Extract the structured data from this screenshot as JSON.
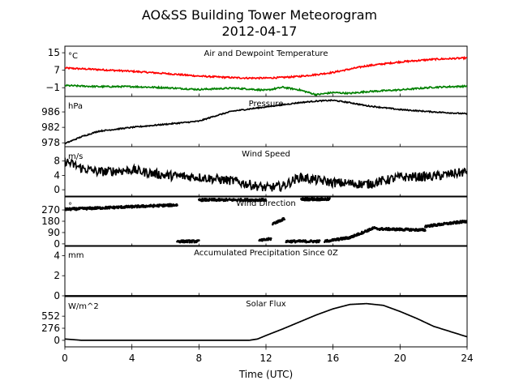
{
  "title": "AO&SS Building Tower Meteorogram",
  "subtitle": "2012-04-17",
  "chart_data": [
    {
      "type": "line",
      "title": "Air and Dewpoint Temperature",
      "unit": "°C",
      "yticks": [
        "15",
        "7",
        "−1"
      ],
      "ylim": [
        -5,
        18
      ],
      "x": [
        0,
        2,
        4,
        6,
        8,
        10,
        11,
        12,
        13,
        14,
        15,
        16,
        17,
        18,
        20,
        22,
        24
      ],
      "series": [
        {
          "color": "#ff0000",
          "values": [
            8,
            7.3,
            6.5,
            5.5,
            4.3,
            3.6,
            3.4,
            3.4,
            3.7,
            4.2,
            5,
            6,
            7.5,
            9,
            10.8,
            12,
            12.6
          ]
        },
        {
          "color": "#008000",
          "values": [
            0,
            -0.5,
            -0.5,
            -1,
            -1.8,
            -1.2,
            -1.6,
            -2.2,
            -0.8,
            -2,
            -4.2,
            -3.2,
            -3.6,
            -2.8,
            -2,
            -0.8,
            -0.3
          ]
        }
      ]
    },
    {
      "type": "line",
      "title": "Pressure",
      "unit": "hPa",
      "yticks": [
        "986",
        "982",
        "978"
      ],
      "ylim": [
        977,
        990
      ],
      "x": [
        0,
        1,
        2,
        4,
        6,
        8,
        9,
        10,
        12,
        14,
        15,
        16,
        17,
        18,
        20,
        22,
        24
      ],
      "series": [
        {
          "color": "#000000",
          "values": [
            977.8,
            979.6,
            981,
            982,
            982.8,
            983.6,
            985,
            986.2,
            987.3,
            988.4,
            988.8,
            989,
            988.4,
            987.6,
            986.6,
            986,
            985.5
          ]
        }
      ]
    },
    {
      "type": "line",
      "title": "Wind Speed",
      "unit": "m/s",
      "yticks": [
        "8",
        "4",
        "0"
      ],
      "ylim": [
        -2,
        12
      ],
      "x": [
        0,
        1,
        2,
        4,
        6,
        8,
        10,
        12,
        13,
        14,
        16,
        18,
        20,
        22,
        24
      ],
      "series": [
        {
          "color": "#000000",
          "values": [
            8,
            6,
            5,
            5.5,
            4,
            3.5,
            2.5,
            0.5,
            1,
            3.5,
            2,
            1.5,
            3.5,
            3.7,
            5
          ]
        }
      ]
    },
    {
      "type": "scatter",
      "title": "Wind Direction",
      "unit": "°",
      "yticks": [
        "270",
        "180",
        "90",
        "0"
      ],
      "ylim": [
        -20,
        380
      ],
      "segments": [
        {
          "x0": 0,
          "x1": 6.7,
          "y0": 275,
          "y1": 310
        },
        {
          "x0": 6.7,
          "x1": 8.0,
          "y0": 20,
          "y1": 20
        },
        {
          "x0": 8.0,
          "x1": 12.0,
          "y0": 350,
          "y1": 350
        },
        {
          "x0": 11.6,
          "x1": 12.3,
          "y0": 25,
          "y1": 40
        },
        {
          "x0": 12.4,
          "x1": 13.1,
          "y0": 160,
          "y1": 200
        },
        {
          "x0": 13.2,
          "x1": 15.2,
          "y0": 20,
          "y1": 20
        },
        {
          "x0": 14.1,
          "x1": 15.8,
          "y0": 355,
          "y1": 355
        },
        {
          "x0": 15.5,
          "x1": 17.0,
          "y0": 20,
          "y1": 50
        },
        {
          "x0": 17.0,
          "x1": 18.5,
          "y0": 50,
          "y1": 130
        },
        {
          "x0": 18.5,
          "x1": 21.5,
          "y0": 120,
          "y1": 110
        },
        {
          "x0": 21.5,
          "x1": 24.0,
          "y0": 140,
          "y1": 180
        }
      ]
    },
    {
      "type": "line",
      "title": "Accumulated Precipitation Since 0Z",
      "unit": "mm",
      "yticks": [
        "4",
        "2",
        "0"
      ],
      "ylim": [
        0,
        5
      ],
      "x": [
        0,
        24
      ],
      "series": [
        {
          "color": "#000000",
          "values": [
            0,
            0
          ]
        }
      ]
    },
    {
      "type": "line",
      "title": "Solar Flux",
      "unit": "W/m^2",
      "yticks": [
        "552",
        "276",
        "0"
      ],
      "ylim": [
        -150,
        1000
      ],
      "x": [
        0,
        1,
        2,
        4,
        6,
        8,
        10,
        11,
        11.5,
        12,
        13,
        14,
        15,
        16,
        17,
        18,
        19,
        20,
        21,
        22,
        23,
        24
      ],
      "series": [
        {
          "color": "#000000",
          "values": [
            30,
            0,
            0,
            0,
            0,
            0,
            0,
            0,
            30,
            110,
            260,
            420,
            580,
            720,
            820,
            840,
            800,
            660,
            500,
            320,
            200,
            80
          ]
        }
      ]
    }
  ],
  "xaxis": {
    "label": "Time (UTC)",
    "ticks": [
      "0",
      "4",
      "8",
      "12",
      "16",
      "20",
      "24"
    ],
    "xlim": [
      0,
      24
    ]
  }
}
